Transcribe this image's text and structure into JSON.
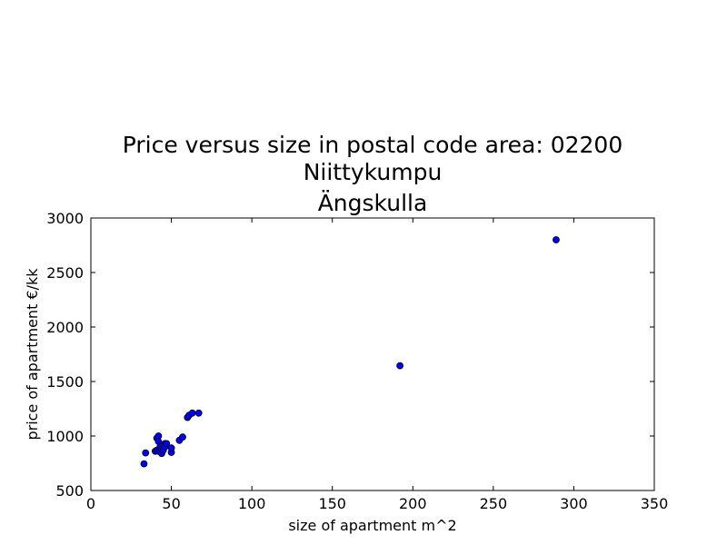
{
  "chart_data": {
    "type": "scatter",
    "title_lines": [
      "Price versus size in postal code area: 02200",
      "Niittykumpu",
      "Ängskulla"
    ],
    "xlabel": "size of apartment m^2",
    "ylabel": "price of apartment €/kk",
    "xlim": [
      0,
      350
    ],
    "ylim": [
      500,
      3000
    ],
    "xticks": [
      0,
      50,
      100,
      150,
      200,
      250,
      300,
      350
    ],
    "yticks": [
      500,
      1000,
      1500,
      2000,
      2500,
      3000
    ],
    "grid": false,
    "marker_color": "#0000ff",
    "series": [
      {
        "x": [
          33,
          34,
          40,
          41,
          41,
          42,
          42,
          42,
          43,
          44,
          44,
          45,
          45,
          46,
          46,
          47,
          50,
          50,
          55,
          57,
          60,
          61,
          63,
          67,
          192,
          289
        ],
        "y": [
          745,
          845,
          860,
          870,
          980,
          1000,
          950,
          860,
          900,
          880,
          840,
          920,
          870,
          930,
          900,
          930,
          850,
          890,
          960,
          990,
          1170,
          1190,
          1210,
          1210,
          1645,
          2800
        ]
      }
    ]
  }
}
